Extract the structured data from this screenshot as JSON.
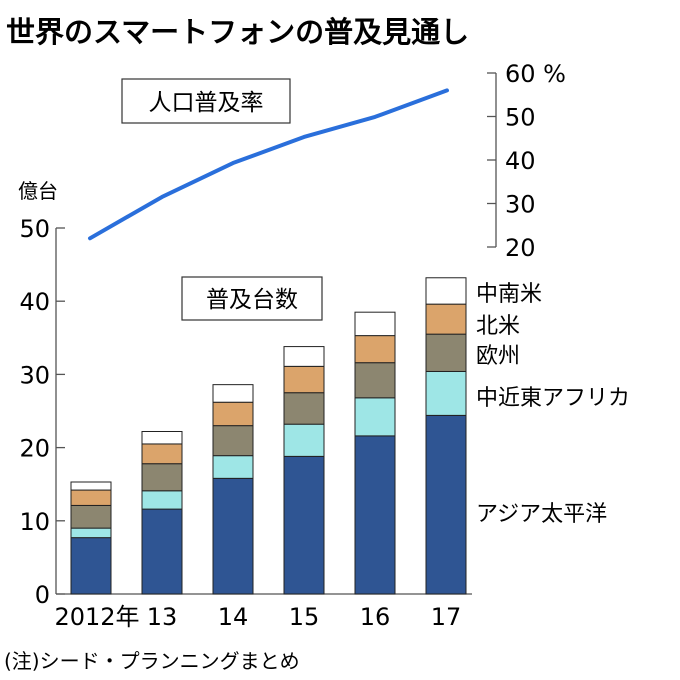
{
  "chart_data": {
    "type": "bar",
    "title": "世界のスマートフォンの普及見通し",
    "categories": [
      "2012年",
      "13",
      "14",
      "15",
      "16",
      "17"
    ],
    "left_axis": {
      "unit_label": "億台",
      "ylim": [
        0,
        50
      ],
      "ticks": [
        "0",
        "10",
        "20",
        "30",
        "40",
        "50"
      ]
    },
    "right_axis": {
      "ylim": [
        20,
        60
      ],
      "ticks": [
        "20",
        "30",
        "40",
        "50",
        "60 %"
      ]
    },
    "bar_box_label": "普及台数",
    "line_box_label": "人口普及率",
    "stack_series": [
      {
        "name": "アジア太平洋",
        "color": "#2f5593",
        "values": [
          7.7,
          11.6,
          15.8,
          18.8,
          21.6,
          24.4
        ]
      },
      {
        "name": "中近東アフリカ",
        "color": "#9ee6e6",
        "values": [
          1.3,
          2.5,
          3.1,
          4.4,
          5.2,
          6.0
        ]
      },
      {
        "name": "欧州",
        "color": "#8c8670",
        "values": [
          3.1,
          3.7,
          4.1,
          4.3,
          4.8,
          5.1
        ]
      },
      {
        "name": "北米",
        "color": "#dba46b",
        "values": [
          2.1,
          2.7,
          3.2,
          3.6,
          3.7,
          4.1
        ]
      },
      {
        "name": "中南米",
        "color": "#ffffff",
        "values": [
          1.1,
          1.7,
          2.4,
          2.7,
          3.2,
          3.6
        ]
      }
    ],
    "line_series": {
      "name": "人口普及率",
      "color": "#2a6fdb",
      "unit": "%",
      "values": [
        22,
        31.5,
        39.3,
        45.3,
        49.9,
        56
      ]
    },
    "grid": false,
    "legend": "right",
    "note": "(注)シード・プランニングまとめ"
  }
}
